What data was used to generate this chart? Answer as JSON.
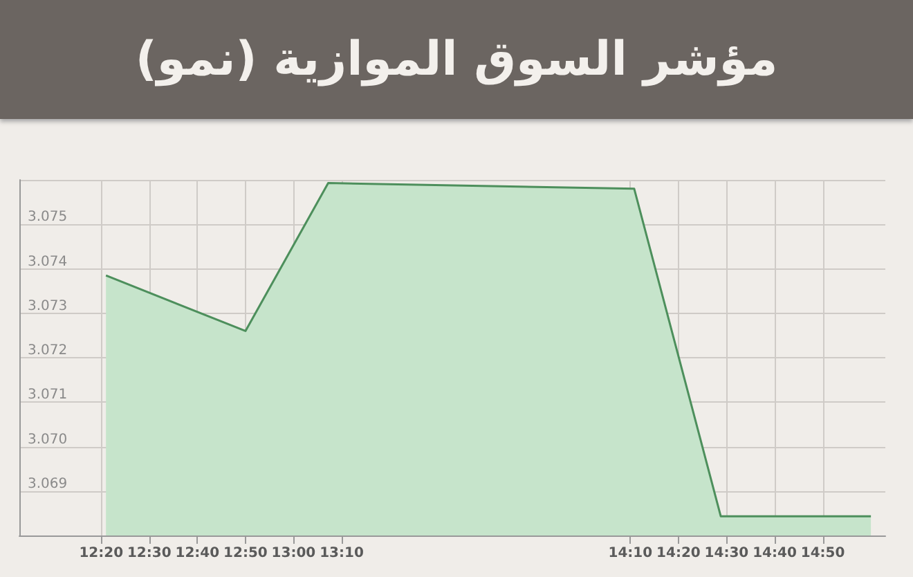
{
  "chart_data": {
    "type": "area",
    "title": "مؤشر السوق الموازية (نمو)",
    "x": [
      12.35,
      12.8333,
      13.12,
      14.18,
      14.48,
      15.0
    ],
    "series": [
      {
        "color": "#4d8f5c",
        "values": [
          3.07385,
          3.0726,
          3.07593,
          3.0758,
          3.06843,
          3.06843
        ]
      }
    ],
    "xlim": [
      12.05,
      15.05
    ],
    "xticks": [
      {
        "value": 12.3333,
        "label": "12:20"
      },
      {
        "value": 12.5,
        "label": "12:30"
      },
      {
        "value": 12.6667,
        "label": "12:40"
      },
      {
        "value": 12.8333,
        "label": "12:50"
      },
      {
        "value": 13.0,
        "label": "13:00"
      },
      {
        "value": 13.1667,
        "label": "13:10"
      },
      {
        "value": 14.1667,
        "label": "14:10"
      },
      {
        "value": 14.3333,
        "label": "14:20"
      },
      {
        "value": 14.5,
        "label": "14:30"
      },
      {
        "value": 14.6667,
        "label": "14:40"
      },
      {
        "value": 14.8333,
        "label": "14:50"
      }
    ],
    "ylim": [
      3.068,
      3.076
    ],
    "yticks": [
      3.069,
      {
        "value": 3.07,
        "label": "3.070"
      },
      3.071,
      3.072,
      3.073,
      3.074,
      3.075,
      {
        "value": 3.076,
        "label": null
      }
    ],
    "grid": true,
    "marker": "none",
    "line_style": "solid"
  }
}
